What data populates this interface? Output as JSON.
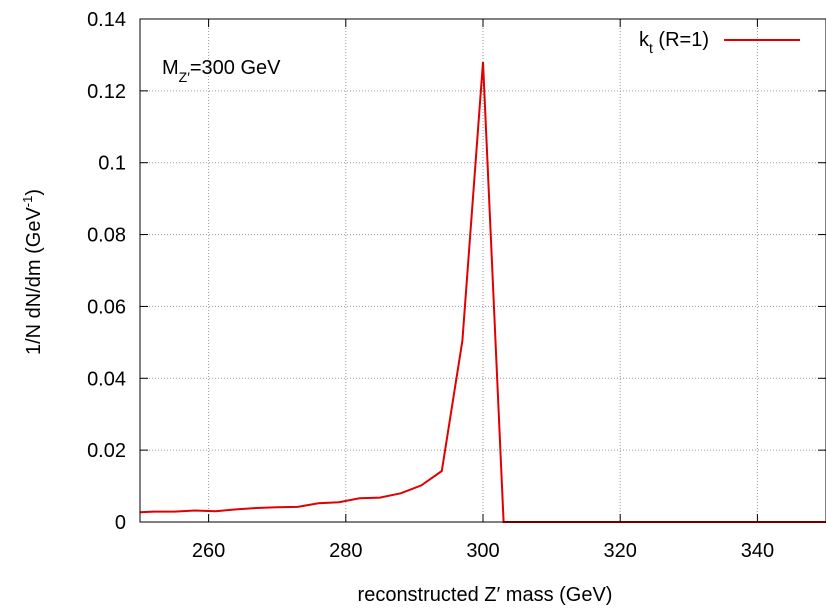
{
  "chart_data": {
    "type": "line",
    "title": "",
    "xlabel": "reconstructed Z′ mass (GeV)",
    "ylabel_main": "1/N dN/dm (GeV",
    "ylabel_sup": "-1",
    "ylabel_close": ")",
    "xlim": [
      250,
      350
    ],
    "ylim": [
      0,
      0.14
    ],
    "xticks": [
      260,
      280,
      300,
      320,
      340
    ],
    "yticks": [
      0,
      0.02,
      0.04,
      0.06,
      0.08,
      0.1,
      0.12,
      0.14
    ],
    "ytick_labels": [
      "0",
      "0.02",
      "0.04",
      "0.06",
      "0.08",
      "0.1",
      "0.12",
      "0.14"
    ],
    "grid": true,
    "legend_position": "top-right",
    "annotation": {
      "main": "M",
      "sub": "Z′",
      "rest": "=300 GeV"
    },
    "series": [
      {
        "legend_main": "k",
        "legend_sub": "t",
        "legend_rest": " (R=1)",
        "color": "#e00000",
        "x": [
          250,
          252,
          255,
          258,
          261,
          264,
          267,
          270,
          273,
          276,
          279,
          282,
          285,
          288,
          291,
          294,
          297,
          300,
          303,
          306,
          310,
          320,
          330,
          340,
          350
        ],
        "y": [
          0.0027,
          0.0029,
          0.0029,
          0.0032,
          0.003,
          0.0035,
          0.0039,
          0.0041,
          0.0042,
          0.0052,
          0.0055,
          0.0066,
          0.0068,
          0.008,
          0.0102,
          0.0142,
          0.0505,
          0.128,
          0.0,
          0.0,
          0.0,
          0.0,
          0.0,
          0.0,
          0.0
        ]
      }
    ]
  }
}
